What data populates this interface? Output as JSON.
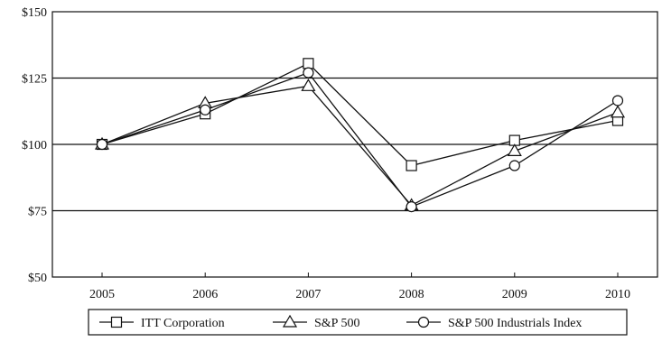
{
  "chart_data": {
    "type": "line",
    "title": "",
    "xlabel": "",
    "ylabel": "",
    "x": [
      "2005",
      "2006",
      "2007",
      "2008",
      "2009",
      "2010"
    ],
    "y_ticks": [
      "$50",
      "$75",
      "$100",
      "$125",
      "$150"
    ],
    "ylim": [
      50,
      150
    ],
    "grid": "horizontal at $75, $100, $125",
    "legend_position": "bottom",
    "series": [
      {
        "name": "ITT Corporation",
        "marker": "square",
        "values": [
          100,
          111.5,
          130.5,
          92,
          101.5,
          109
        ]
      },
      {
        "name": "S&P 500",
        "marker": "triangle",
        "values": [
          100,
          115.5,
          122,
          77,
          97.5,
          112
        ]
      },
      {
        "name": "S&P 500 Industrials Index",
        "marker": "circle",
        "values": [
          100,
          113,
          127,
          76.5,
          92,
          116.5
        ]
      }
    ]
  }
}
